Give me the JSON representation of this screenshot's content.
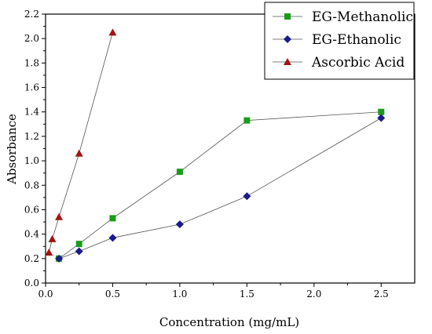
{
  "chart_data": {
    "type": "line",
    "xlabel": "Concentration (mg/mL)",
    "ylabel": "Absorbance",
    "xlim": [
      0,
      2.75
    ],
    "ylim": [
      0,
      2.2
    ],
    "xticks": [
      "0.0",
      "0.5",
      "1.0",
      "1.5",
      "2.0",
      "2.5"
    ],
    "yticks": [
      "0.0",
      "0.2",
      "0.4",
      "0.6",
      "0.8",
      "1.0",
      "1.2",
      "1.4",
      "1.6",
      "1.8",
      "2.0",
      "2.2"
    ],
    "grid": false,
    "legend_position": "top-right",
    "series": [
      {
        "name": "EG-Methanolic",
        "marker": "square",
        "color": "#1a9c1a",
        "x": [
          0.1,
          0.25,
          0.5,
          1.0,
          1.5,
          2.5
        ],
        "y": [
          0.2,
          0.32,
          0.53,
          0.91,
          1.33,
          1.4
        ]
      },
      {
        "name": "EG-Ethanolic",
        "marker": "diamond",
        "color": "#1a1a8c",
        "x": [
          0.1,
          0.25,
          0.5,
          1.0,
          1.5,
          2.5
        ],
        "y": [
          0.2,
          0.26,
          0.37,
          0.48,
          0.71,
          1.35
        ]
      },
      {
        "name": "Ascorbic Acid",
        "marker": "triangle",
        "color": "#a01414",
        "x": [
          0.025,
          0.05,
          0.1,
          0.25,
          0.5
        ],
        "y": [
          0.25,
          0.36,
          0.54,
          1.06,
          2.05
        ]
      }
    ]
  }
}
